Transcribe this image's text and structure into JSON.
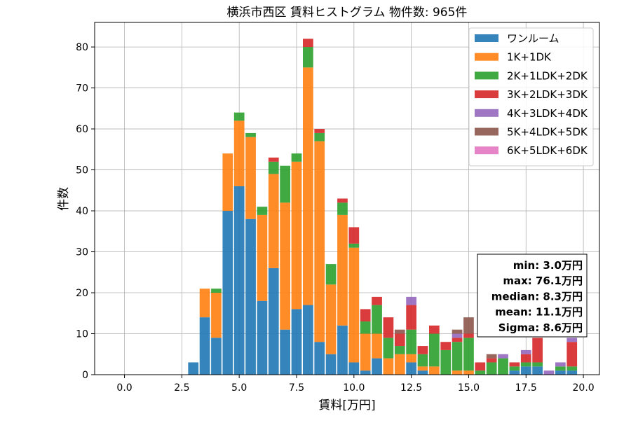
{
  "chart_data": {
    "type": "bar",
    "stacked": true,
    "title": "横浜市西区 賃料ヒストグラム  物件数: 965件",
    "xlabel": "賃料[万円]",
    "ylabel": "件数",
    "xlim": [
      -1.3,
      20.7
    ],
    "ylim": [
      0,
      86
    ],
    "xticks": [
      0.0,
      2.5,
      5.0,
      7.5,
      10.0,
      12.5,
      15.0,
      17.5,
      20.0
    ],
    "xtick_labels": [
      "0.0",
      "2.5",
      "5.0",
      "7.5",
      "10.0",
      "12.5",
      "15.0",
      "17.5",
      "20.0"
    ],
    "yticks": [
      0,
      10,
      20,
      30,
      40,
      50,
      60,
      70,
      80
    ],
    "ytick_labels": [
      "0",
      "10",
      "20",
      "30",
      "40",
      "50",
      "60",
      "70",
      "80"
    ],
    "grid": true,
    "legend_position": "top-right",
    "bin_width": 0.5,
    "bar_width": 0.45,
    "x": [
      3.0,
      3.5,
      4.0,
      4.5,
      5.0,
      5.5,
      6.0,
      6.5,
      7.0,
      7.5,
      8.0,
      8.5,
      9.0,
      9.5,
      10.0,
      10.5,
      11.0,
      11.5,
      12.0,
      12.5,
      13.0,
      13.5,
      14.0,
      14.5,
      15.0,
      15.5,
      16.0,
      16.5,
      17.0,
      17.5,
      18.0,
      18.5,
      19.0,
      19.5
    ],
    "series": [
      {
        "name": "ワンルーム",
        "color": "#1f77b4",
        "values": [
          3,
          14,
          9,
          40,
          46,
          38,
          18,
          26,
          11,
          16,
          17,
          8,
          5,
          12,
          3,
          1,
          4,
          0,
          0,
          3,
          1,
          0,
          0,
          0,
          0,
          0,
          0,
          0,
          1,
          2,
          2,
          0,
          1,
          1
        ]
      },
      {
        "name": "1K+1DK",
        "color": "#ff7f0e",
        "values": [
          0,
          7,
          11,
          14,
          16,
          20,
          21,
          23,
          31,
          36,
          58,
          49,
          17,
          27,
          28,
          9,
          6,
          4,
          5,
          2,
          1,
          2,
          0,
          1,
          1,
          0,
          0,
          0,
          0,
          0,
          0,
          0,
          0,
          0
        ]
      },
      {
        "name": "2K+1LDK+2DK",
        "color": "#2ca02c",
        "values": [
          0,
          0,
          1,
          0,
          2,
          1,
          2,
          3,
          9,
          2,
          5,
          2,
          5,
          3,
          1,
          3,
          7,
          5,
          2,
          6,
          3,
          8,
          6,
          7,
          8,
          1,
          3,
          4,
          1,
          1,
          1,
          0,
          1,
          1
        ]
      },
      {
        "name": "3K+2LDK+3DK",
        "color": "#d62728",
        "values": [
          0,
          0,
          0,
          0,
          0,
          0,
          0,
          1,
          0,
          0,
          2,
          1,
          0,
          1,
          4,
          3,
          2,
          5,
          3,
          6,
          2,
          2,
          2,
          1,
          1,
          2,
          1,
          0,
          1,
          2,
          6,
          0,
          0,
          6
        ]
      },
      {
        "name": "4K+3LDK+4DK",
        "color": "#9467bd",
        "values": [
          0,
          0,
          0,
          0,
          0,
          0,
          0,
          0,
          0,
          0,
          0,
          0,
          0,
          0,
          0,
          0,
          0,
          0,
          0,
          2,
          0,
          0,
          0,
          1,
          0,
          0,
          0,
          1,
          0,
          1,
          0,
          1,
          1,
          1
        ]
      },
      {
        "name": "5K+4LDK+5DK",
        "color": "#8c564b",
        "values": [
          0,
          0,
          0,
          0,
          0,
          0,
          0,
          0,
          0,
          0,
          0,
          0,
          0,
          0,
          0,
          0,
          0,
          0,
          1,
          0,
          0,
          0,
          0,
          1,
          4,
          0,
          1,
          0,
          0,
          0,
          0,
          0,
          0,
          0
        ]
      },
      {
        "name": "6K+5LDK+6DK",
        "color": "#e377c2",
        "values": [
          0,
          0,
          0,
          0,
          0,
          0,
          0,
          0,
          0,
          0,
          0,
          0,
          0,
          0,
          0,
          0,
          0,
          0,
          0,
          0,
          0,
          0,
          0,
          0,
          0,
          0,
          0,
          0,
          0,
          0,
          0,
          0,
          0,
          0
        ]
      }
    ],
    "stats_box": [
      "min: 3.0万円",
      "max: 76.1万円",
      "median: 8.3万円",
      "mean: 11.1万円",
      "Sigma: 8.6万円"
    ]
  }
}
